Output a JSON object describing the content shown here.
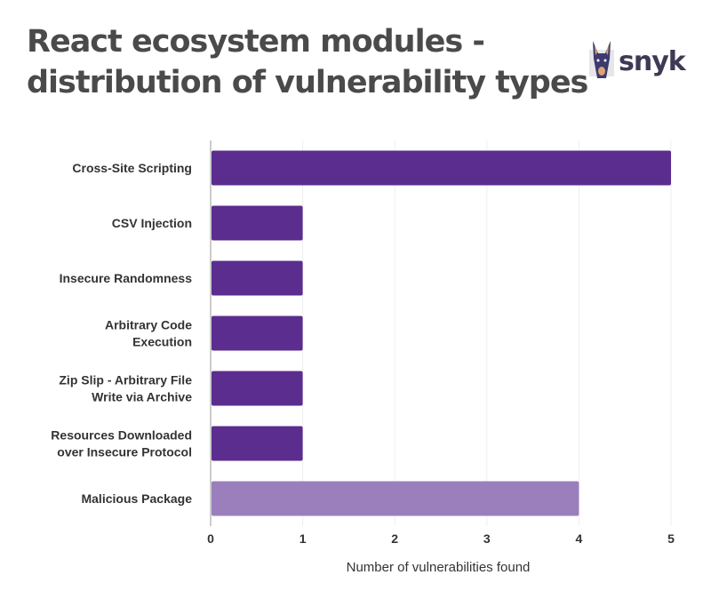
{
  "chart_data": {
    "type": "bar",
    "orientation": "horizontal",
    "title": "React ecosystem modules - distribution of vulnerability types",
    "title_lines": [
      "React ecosystem modules -",
      "distribution of vulnerability types"
    ],
    "categories": [
      [
        "Cross-Site Scripting"
      ],
      [
        "CSV Injection"
      ],
      [
        "Insecure Randomness"
      ],
      [
        "Arbitrary Code",
        "Execution"
      ],
      [
        "Zip Slip - Arbitrary File",
        "Write via Archive"
      ],
      [
        "Resources Downloaded",
        "over Insecure Protocol"
      ],
      [
        "Malicious Package"
      ]
    ],
    "values": [
      5,
      1,
      1,
      1,
      1,
      1,
      4
    ],
    "bar_colors": [
      "#5b2d8e",
      "#5b2d8e",
      "#5b2d8e",
      "#5b2d8e",
      "#5b2d8e",
      "#5b2d8e",
      "#9b7fbd"
    ],
    "xlabel": "Number of vulnerabilities found",
    "ylabel": "",
    "xlim": [
      0,
      5
    ],
    "xticks": [
      0,
      1,
      2,
      3,
      4,
      5
    ],
    "grid": true
  },
  "logo": {
    "text": "snyk"
  }
}
